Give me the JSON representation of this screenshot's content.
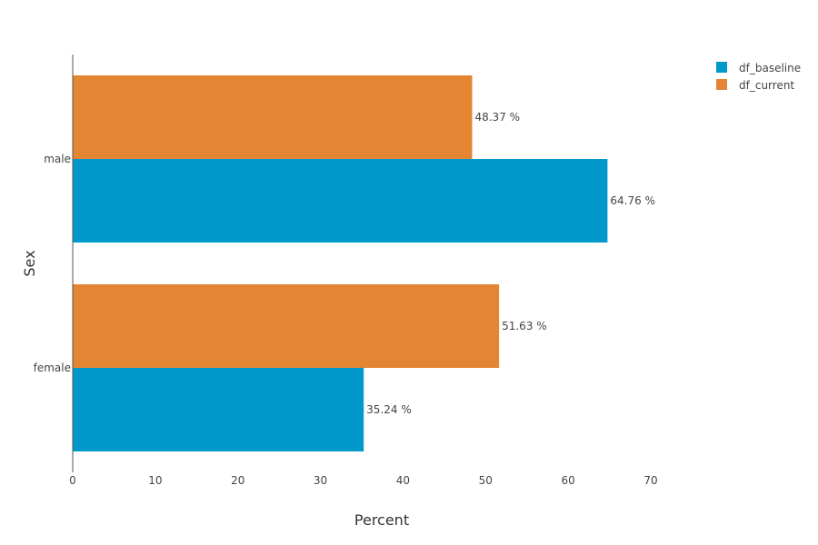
{
  "chart_data": {
    "type": "bar",
    "orientation": "horizontal",
    "categories": [
      "male",
      "female"
    ],
    "series": [
      {
        "name": "df_baseline",
        "values": [
          64.76,
          35.24
        ],
        "color": "#0099c9"
      },
      {
        "name": "df_current",
        "values": [
          48.37,
          51.63
        ],
        "color": "#e48533"
      }
    ],
    "xlabel": "Percent",
    "ylabel": "Sex",
    "xlim": [
      0,
      70
    ],
    "xticks": [
      0,
      10,
      20,
      30,
      40,
      50,
      60,
      70
    ],
    "value_suffix": " %",
    "grid": false,
    "legend_position": "top-right"
  }
}
